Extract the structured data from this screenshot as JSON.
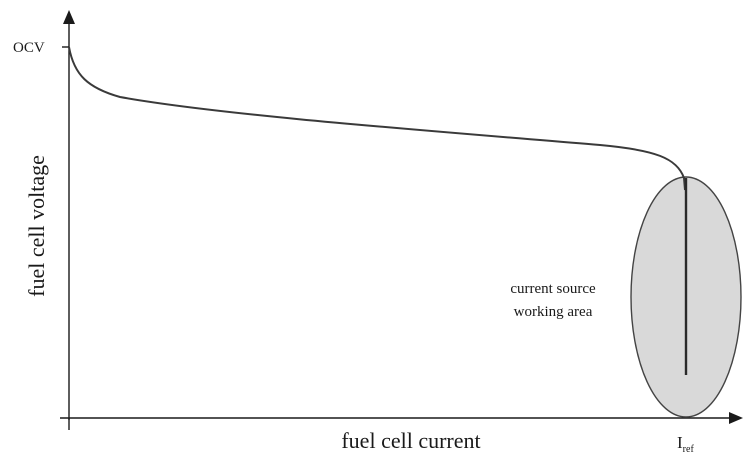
{
  "chart_data": {
    "type": "line",
    "title": "",
    "xlabel": "fuel cell current",
    "ylabel": "fuel cell voltage",
    "y_tick_labels": [
      "OCV"
    ],
    "x_tick_label_main": "I",
    "x_tick_label_sub": "ref",
    "region_label_line1": "current source",
    "region_label_line2": "working area",
    "grid": false,
    "curve_shape": "fuel cell polarization curve: rapid drop from OCV, long linear decline, then steep drop at I_ref"
  },
  "colors": {
    "curve": "#3a3a3a",
    "region_fill": "#d9d9d9",
    "axes": "#1a1a1a"
  }
}
